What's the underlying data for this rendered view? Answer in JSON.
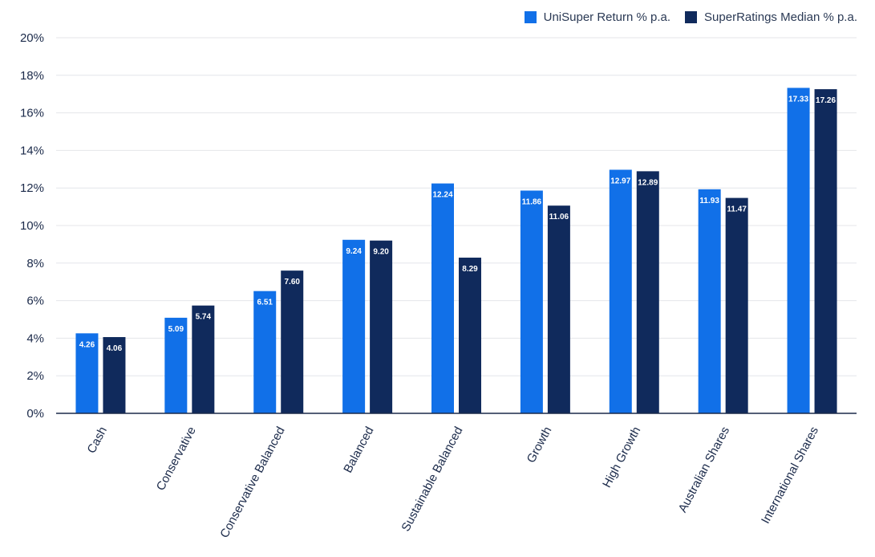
{
  "chart_data": {
    "type": "bar",
    "title": "",
    "xlabel": "",
    "ylabel": "",
    "categories": [
      "Cash",
      "Conservative",
      "Conservative Balanced",
      "Balanced",
      "Sustainable Balanced",
      "Growth",
      "High Growth",
      "Australian Shares",
      "International Shares"
    ],
    "series": [
      {
        "name": "UniSuper Return % p.a.",
        "color": "#1170e8",
        "values": [
          4.26,
          5.09,
          6.51,
          9.24,
          12.24,
          11.86,
          12.97,
          11.93,
          17.33
        ],
        "labels": [
          "4.26",
          "5.09",
          "6.51",
          "9.24",
          "12.24",
          "11.86",
          "12.97",
          "11.93",
          "17.33"
        ]
      },
      {
        "name": "SuperRatings Median % p.a.",
        "color": "#102a5c",
        "values": [
          4.06,
          5.74,
          7.6,
          9.2,
          8.29,
          11.06,
          12.89,
          11.47,
          17.26
        ],
        "labels": [
          "4.06",
          "5.74",
          "7.60",
          "9.20",
          "8.29",
          "11.06",
          "12.89",
          "11.47",
          "17.26"
        ]
      }
    ],
    "ylim": [
      0,
      20
    ],
    "yticks": [
      0,
      2,
      4,
      6,
      8,
      10,
      12,
      14,
      16,
      18,
      20
    ],
    "ytick_labels": [
      "0%",
      "2%",
      "4%",
      "6%",
      "8%",
      "10%",
      "12%",
      "14%",
      "16%",
      "18%",
      "20%"
    ],
    "grid": true,
    "legend_position": "top-right"
  }
}
